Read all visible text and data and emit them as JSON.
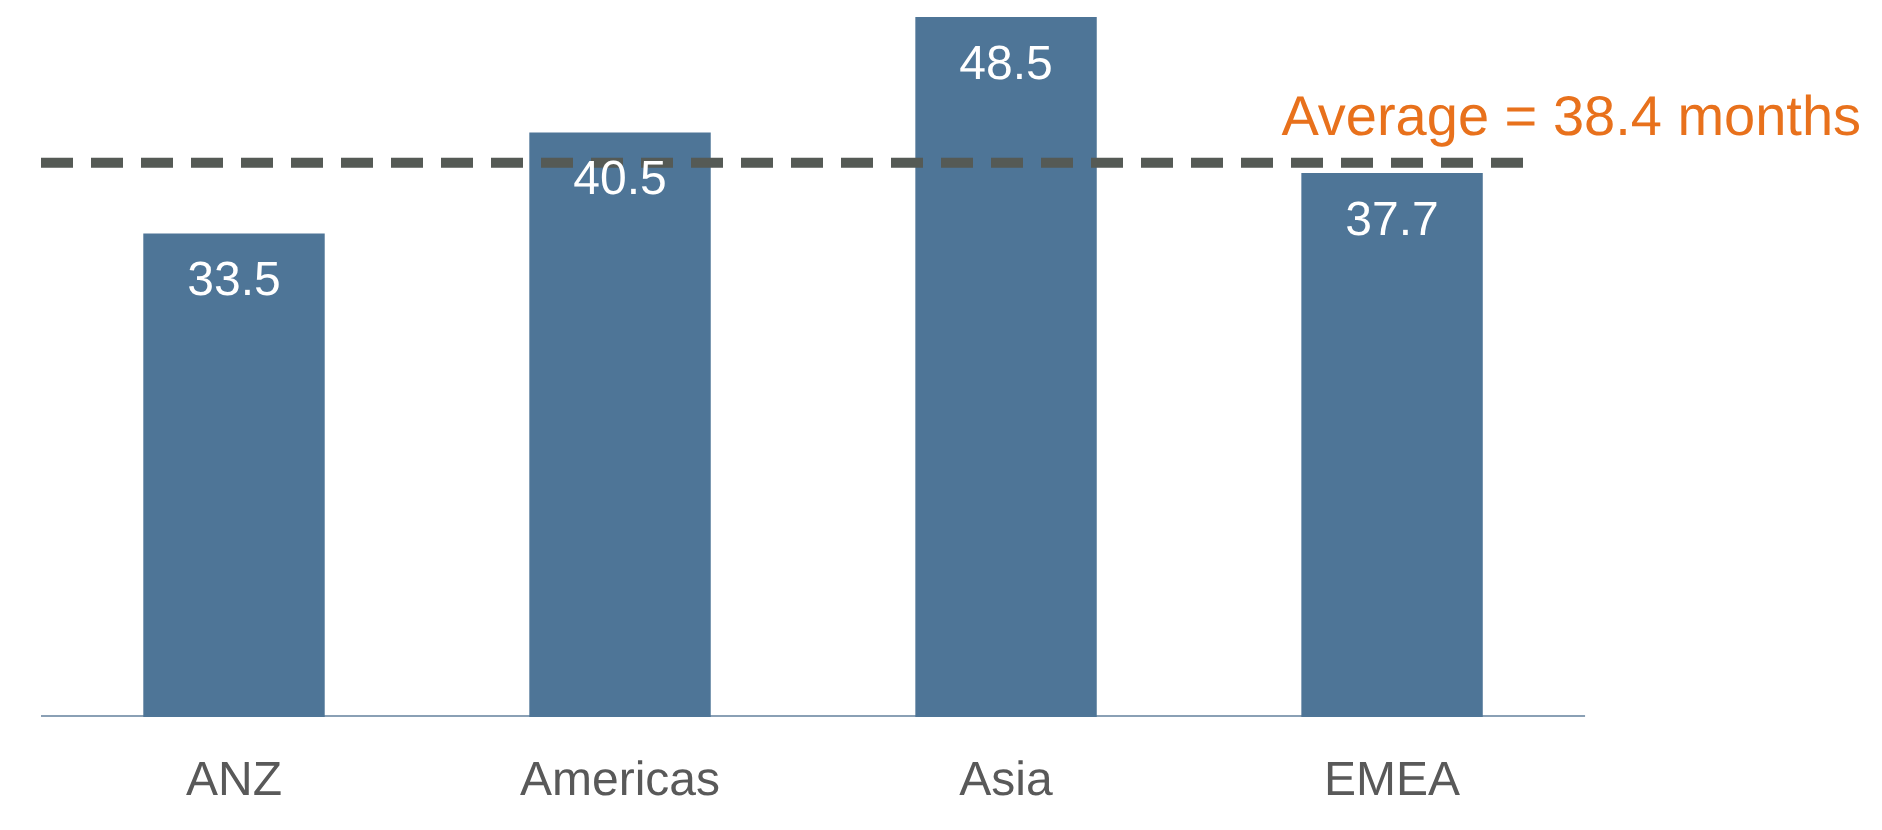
{
  "chart_data": {
    "type": "bar",
    "categories": [
      "ANZ",
      "Americas",
      "Asia",
      "EMEA"
    ],
    "values": [
      33.5,
      40.5,
      48.5,
      37.7
    ],
    "color": "#4e7597",
    "data_labels": true,
    "grid": false,
    "ref_lines": [
      {
        "axis": "y",
        "value": 38.4,
        "label": "Average = 38.4 months",
        "color": "#555a55",
        "line_style": "dashed"
      }
    ]
  }
}
